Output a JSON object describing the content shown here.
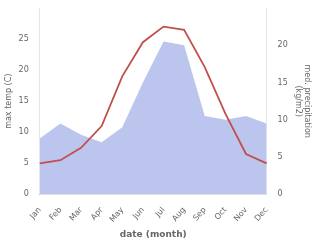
{
  "chart_data": {
    "type": "line",
    "categories": [
      "Jan",
      "Feb",
      "Mar",
      "Apr",
      "May",
      "Jun",
      "Jul",
      "Aug",
      "Sep",
      "Oct",
      "Nov",
      "Dec"
    ],
    "xlabel": "date (month)",
    "ylabel": "max temp (C)",
    "y2label": "med. precipitation\n(kg/m2)",
    "series": [
      {
        "type": "line",
        "color": "#c0504d",
        "values": [
          5.0,
          5.5,
          7.5,
          11.0,
          19.0,
          24.5,
          27.0,
          26.5,
          20.5,
          13.0,
          6.5,
          5.0
        ]
      },
      {
        "type": "area",
        "color": "#bcc5ee",
        "axis": "y2",
        "values": [
          7.5,
          9.5,
          8.0,
          7.0,
          9.0,
          15.0,
          20.5,
          20.0,
          10.5,
          10.0,
          10.5,
          9.5
        ]
      }
    ],
    "ylim": [
      0,
      30
    ],
    "yticks": [
      0,
      5,
      10,
      15,
      20,
      25
    ],
    "y2lim": [
      0,
      25
    ],
    "y2ticks": [
      0,
      5,
      10,
      15,
      20
    ],
    "grid": false
  }
}
